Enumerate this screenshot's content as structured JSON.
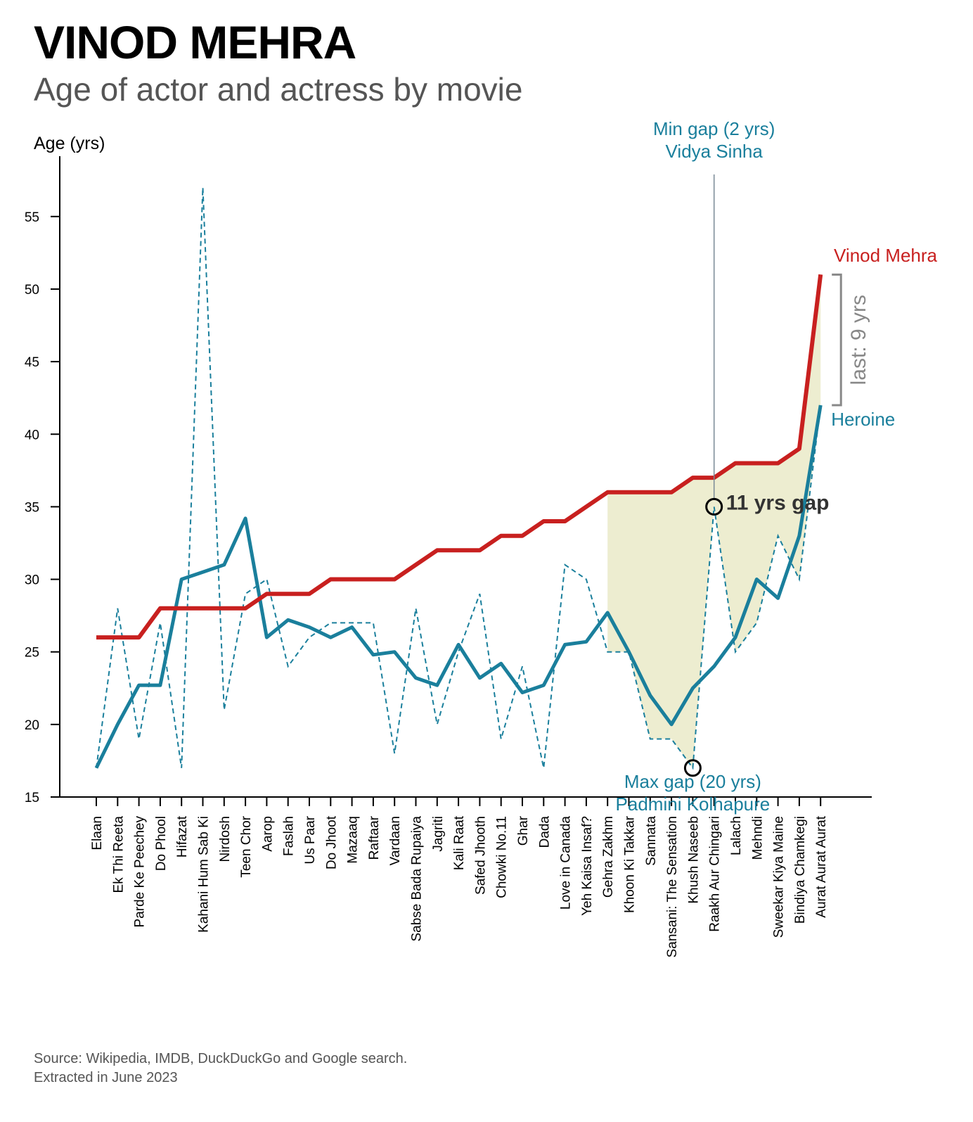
{
  "header": {
    "title": "VINOD MEHRA",
    "subtitle": "Age of actor and actress by movie"
  },
  "source": {
    "line1": "Source: Wikipedia, IMDB, DuckDuckGo and Google search.",
    "line2": "Extracted in June 2023"
  },
  "colors": {
    "actor": "#c8201f",
    "heroine": "#1a7f9c",
    "gap_fill": "#e9e8c4",
    "last_bracket": "#888888",
    "annotation_text": "#333333",
    "min_line": "#7a8a96"
  },
  "chart_data": {
    "type": "line",
    "ylabel": "Age (yrs)",
    "ylim": [
      15,
      58
    ],
    "yticks": [
      15,
      20,
      25,
      30,
      35,
      40,
      45,
      50,
      55
    ],
    "categories": [
      "Elaan",
      "Ek Thi Reeta",
      "Parde Ke Peechey",
      "Do Phool",
      "Hifazat",
      "Kahani Hum Sab Ki",
      "Nirdosh",
      "Teen Chor",
      "Aarop",
      "Faslah",
      "Us Paar",
      "Do Jhoot",
      "Mazaaq",
      "Raftaar",
      "Vardaan",
      "Sabse Bada Rupaiya",
      "Jagriti",
      "Kali Raat",
      "Safed Jhooth",
      "Chowki No.11",
      "Ghar",
      "Dada",
      "Love in Canada",
      "Yeh Kaisa Insaf?",
      "Gehra Zakhm",
      "Khoon Ki Takkar",
      "Sannata",
      "Sansani: The Sensation",
      "Khush Naseeb",
      "Raakh Aur Chingari",
      "Lalach",
      "Mehndi",
      "Sweekar Kiya Maine",
      "Bindiya Chamkegi",
      "Aurat Aurat Aurat"
    ],
    "series": [
      {
        "name": "Vinod Mehra",
        "style": "solid-thick",
        "values": [
          26,
          26,
          26,
          28,
          28,
          28,
          28,
          28,
          29,
          29,
          29,
          30,
          30,
          30,
          30,
          31,
          32,
          32,
          32,
          33,
          33,
          34,
          34,
          35,
          36,
          36,
          36,
          36,
          37,
          37,
          38,
          38,
          38,
          39,
          51
        ]
      },
      {
        "name": "Heroine",
        "style": "dashed",
        "values": [
          17,
          28,
          19,
          27,
          17,
          57,
          21,
          29,
          30,
          24,
          26,
          27,
          27,
          27,
          18,
          28,
          20,
          25,
          29,
          19,
          24,
          17,
          31,
          30,
          25,
          25,
          19,
          19,
          17,
          35,
          25,
          27,
          33,
          30,
          42
        ]
      },
      {
        "name": "Heroine (smoothed)",
        "style": "solid-medium",
        "values": [
          17,
          20,
          22.7,
          22.7,
          30,
          30.5,
          31,
          34.2,
          26,
          27.2,
          26.7,
          26,
          26.7,
          24.8,
          25,
          23.2,
          22.7,
          25.5,
          23.2,
          24.2,
          22.2,
          22.7,
          25.5,
          25.7,
          27.7,
          25,
          22,
          20,
          22.5,
          24,
          26,
          30,
          28.7,
          33,
          42
        ]
      }
    ],
    "shaded_region": {
      "from": "Gehra Zakhm",
      "to": "Aurat Aurat Aurat"
    },
    "annotations": {
      "actor_label": "Vinod Mehra",
      "heroine_label": "Heroine",
      "min_gap_line1": "Min gap (2 yrs)",
      "min_gap_line2": "Vidya Sinha",
      "max_gap_line1": "Max gap (20 yrs)",
      "max_gap_line2": "Padmini Kolhapure",
      "gap_label": "11 yrs gap",
      "last_gap": "last: 9 yrs",
      "min_gap_movie": "Raakh Aur Chingari",
      "min_gap_age": 35,
      "max_gap_movie": "Khush Naseeb",
      "max_gap_age": 17
    }
  }
}
